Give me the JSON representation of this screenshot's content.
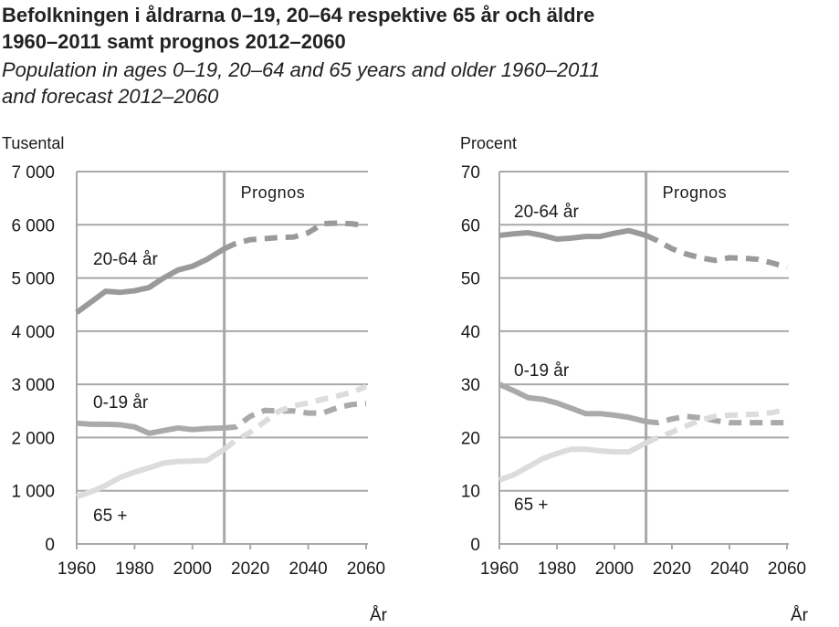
{
  "title": {
    "line1": "Befolkningen i åldrarna 0–19, 20–64 respektive 65 år och äldre",
    "line2": "1960–2011 samt prognos 2012–2060"
  },
  "subtitle": {
    "line1": "Population in ages 0–19, 20–64 and 65 years and older 1960–2011",
    "line2": "and forecast 2012–2060"
  },
  "chart_data": [
    {
      "type": "line",
      "ylabel": "Tusental",
      "xlabel": "År",
      "ylim": [
        0,
        7000
      ],
      "yticks": [
        0,
        1000,
        2000,
        3000,
        4000,
        5000,
        6000,
        7000
      ],
      "ytick_labels": [
        "0",
        "1 000",
        "2 000",
        "3 000",
        "4 000",
        "5 000",
        "6 000",
        "7 000"
      ],
      "xlim": [
        1960,
        2060
      ],
      "xticks": [
        "1960",
        "1980",
        "2000",
        "2020",
        "2040",
        "2060"
      ],
      "forecast_start": 2011,
      "forecast_label": "Prognos",
      "grid": true,
      "x": [
        1960,
        1965,
        1970,
        1975,
        1980,
        1985,
        1990,
        1995,
        2000,
        2005,
        2011,
        2015,
        2020,
        2025,
        2030,
        2035,
        2040,
        2045,
        2050,
        2055,
        2060
      ],
      "series": [
        {
          "name": "20-64 år",
          "color": "#9a9a9a",
          "values": [
            4350,
            4550,
            4750,
            4730,
            4760,
            4820,
            5000,
            5150,
            5220,
            5350,
            5550,
            5650,
            5720,
            5740,
            5760,
            5770,
            5850,
            6020,
            6030,
            6020,
            5980
          ]
        },
        {
          "name": "0-19 år",
          "color": "#aaaaaa",
          "values": [
            2270,
            2250,
            2250,
            2240,
            2200,
            2080,
            2130,
            2180,
            2150,
            2170,
            2180,
            2200,
            2400,
            2510,
            2500,
            2500,
            2460,
            2460,
            2560,
            2620,
            2640
          ]
        },
        {
          "name": "65 +",
          "color": "#dcdcdc",
          "values": [
            890,
            980,
            1100,
            1250,
            1350,
            1430,
            1520,
            1550,
            1560,
            1570,
            1780,
            1950,
            2100,
            2300,
            2500,
            2600,
            2650,
            2720,
            2780,
            2850,
            2960
          ]
        }
      ]
    },
    {
      "type": "line",
      "ylabel": "Procent",
      "xlabel": "År",
      "ylim": [
        0,
        70
      ],
      "yticks": [
        0,
        10,
        20,
        30,
        40,
        50,
        60,
        70
      ],
      "ytick_labels": [
        "0",
        "10",
        "20",
        "30",
        "40",
        "50",
        "60",
        "70"
      ],
      "xlim": [
        1960,
        2060
      ],
      "xticks": [
        "1960",
        "1980",
        "2000",
        "2020",
        "2040",
        "2060"
      ],
      "forecast_start": 2011,
      "forecast_label": "Prognos",
      "grid": true,
      "x": [
        1960,
        1965,
        1970,
        1975,
        1980,
        1985,
        1990,
        1995,
        2000,
        2005,
        2011,
        2015,
        2020,
        2025,
        2030,
        2035,
        2040,
        2045,
        2050,
        2055,
        2060
      ],
      "series": [
        {
          "name": "20-64 år",
          "color": "#9a9a9a",
          "values": [
            58,
            58.3,
            58.5,
            58,
            57.3,
            57.5,
            57.8,
            57.8,
            58.4,
            58.9,
            58,
            57,
            55.5,
            54.5,
            53.8,
            53.3,
            53.8,
            53.7,
            53.5,
            52.8,
            52
          ]
        },
        {
          "name": "0-19 år",
          "color": "#aaaaaa",
          "values": [
            30,
            28.8,
            27.5,
            27.2,
            26.5,
            25.5,
            24.5,
            24.5,
            24.2,
            23.8,
            23,
            22.8,
            23.5,
            24,
            23.7,
            23.2,
            22.8,
            22.8,
            22.8,
            22.8,
            22.8
          ]
        },
        {
          "name": "65 +",
          "color": "#dcdcdc",
          "values": [
            12,
            13,
            14.5,
            16,
            17,
            17.8,
            17.8,
            17.5,
            17.3,
            17.3,
            19,
            20,
            21,
            22.2,
            23.3,
            24,
            24.2,
            24.3,
            24.4,
            24.7,
            25.3
          ]
        }
      ]
    }
  ]
}
